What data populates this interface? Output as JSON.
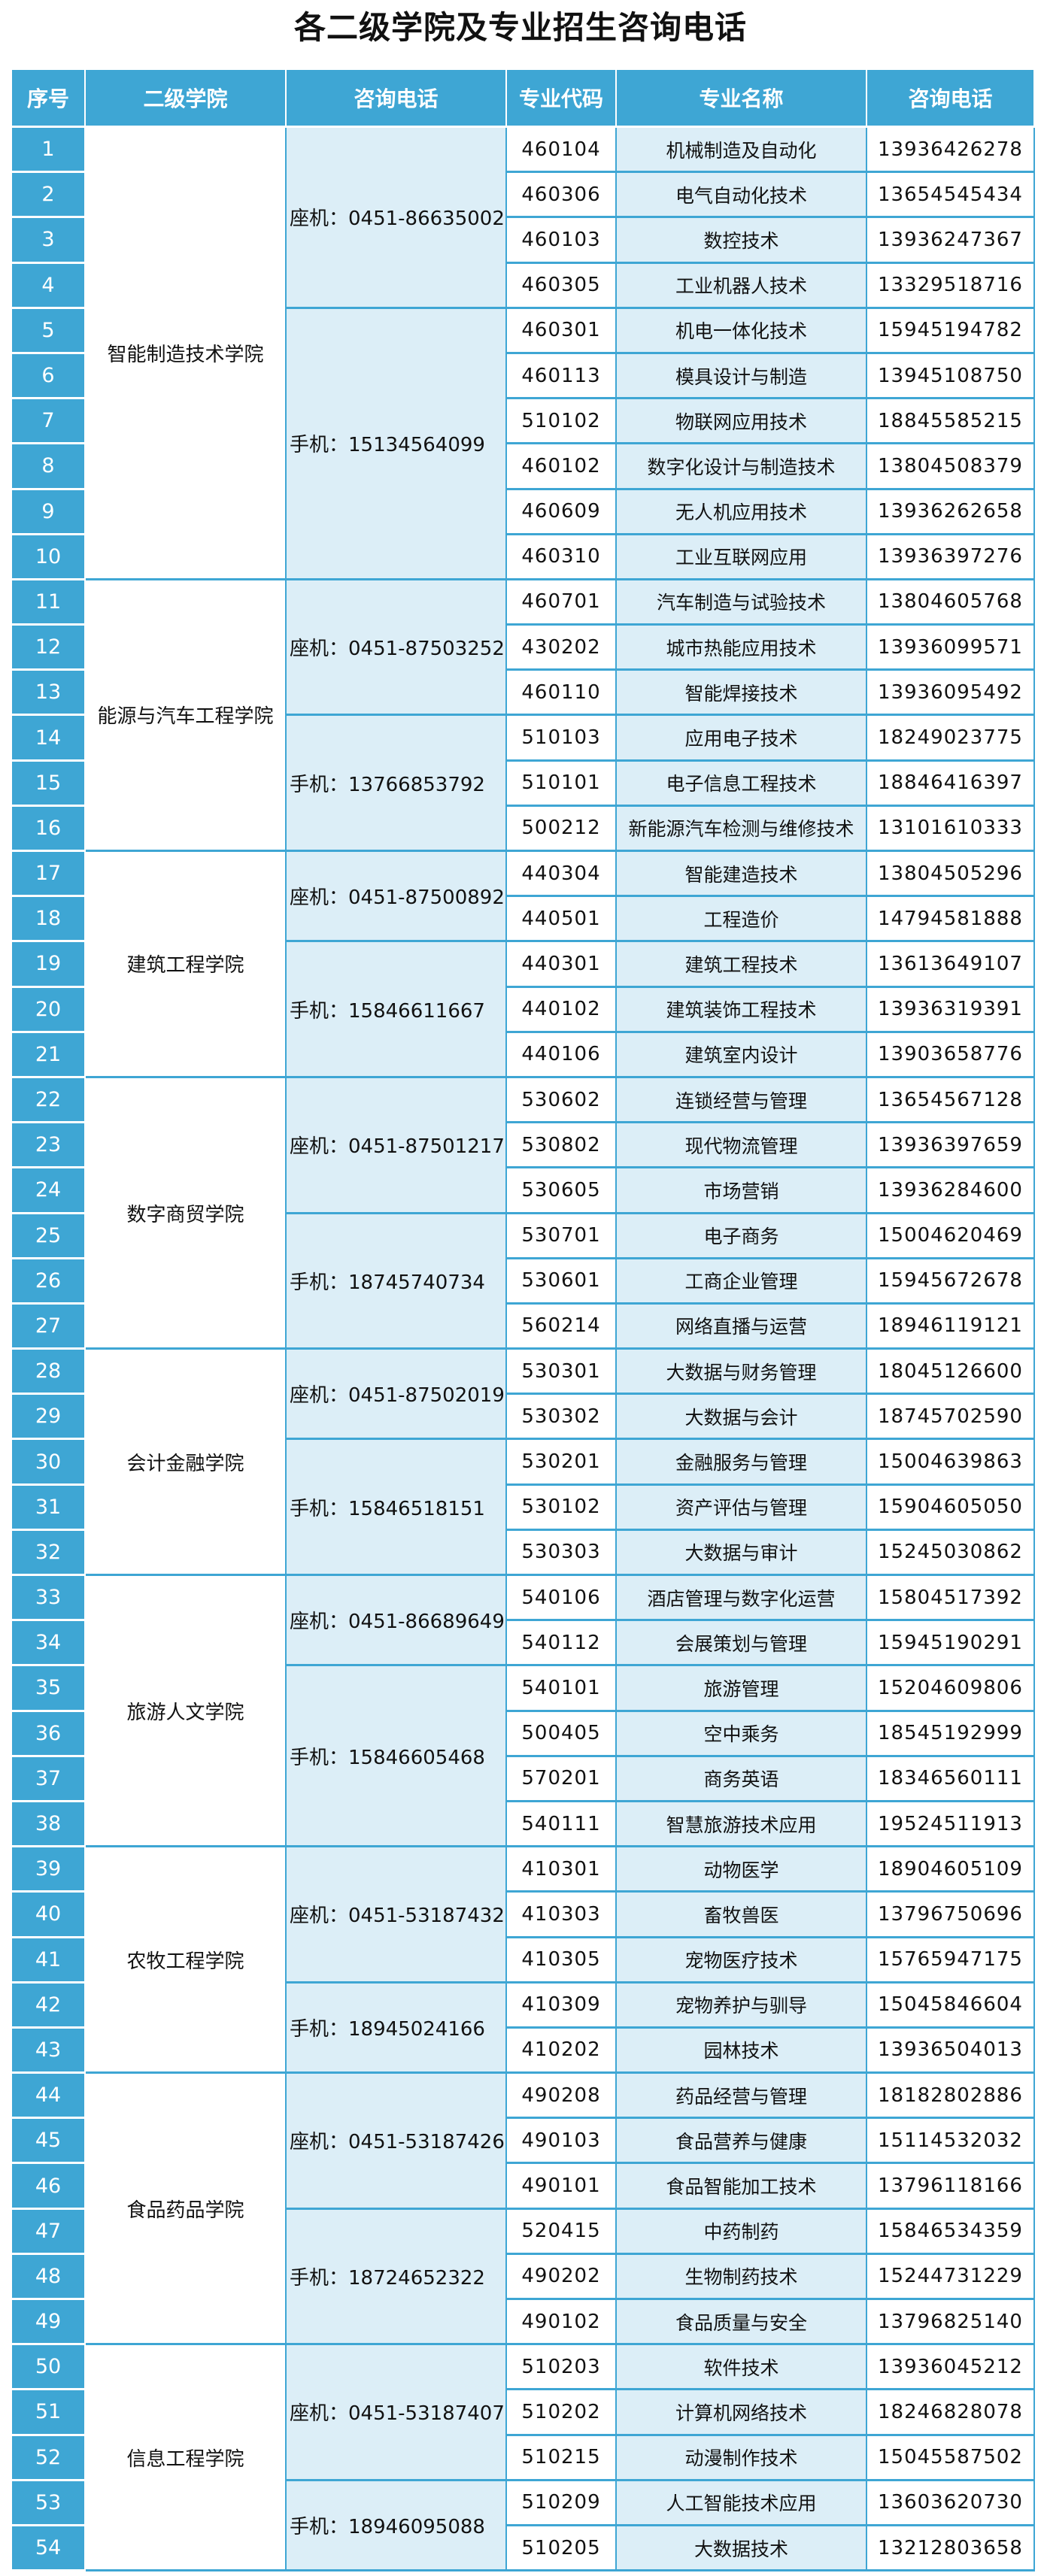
{
  "title": "各二级学院及专业招生咨询电话",
  "colors": {
    "header_bg": "#3ea6d4",
    "alt_cell_bg": "#dceef7",
    "border": "#3ea6d4"
  },
  "headers": [
    "序号",
    "二级学院",
    "咨询电话",
    "专业代码",
    "专业名称",
    "咨询电话"
  ],
  "colleges": [
    {
      "name": "智能制造技术学院",
      "phones": [
        {
          "text": "座机：0451-86635002",
          "majors": [
            {
              "seq": "1",
              "code": "460104",
              "name": "机械制造及自动化",
              "phone": "13936426278"
            },
            {
              "seq": "2",
              "code": "460306",
              "name": "电气自动化技术",
              "phone": "13654545434"
            },
            {
              "seq": "3",
              "code": "460103",
              "name": "数控技术",
              "phone": "13936247367"
            },
            {
              "seq": "4",
              "code": "460305",
              "name": "工业机器人技术",
              "phone": "13329518716"
            }
          ]
        },
        {
          "text": "手机：15134564099",
          "majors": [
            {
              "seq": "5",
              "code": "460301",
              "name": "机电一体化技术",
              "phone": "15945194782"
            },
            {
              "seq": "6",
              "code": "460113",
              "name": "模具设计与制造",
              "phone": "13945108750"
            },
            {
              "seq": "7",
              "code": "510102",
              "name": "物联网应用技术",
              "phone": "18845585215"
            },
            {
              "seq": "8",
              "code": "460102",
              "name": "数字化设计与制造技术",
              "phone": "13804508379"
            },
            {
              "seq": "9",
              "code": "460609",
              "name": "无人机应用技术",
              "phone": "13936262658"
            },
            {
              "seq": "10",
              "code": "460310",
              "name": "工业互联网应用",
              "phone": "13936397276"
            }
          ]
        }
      ]
    },
    {
      "name": "能源与汽车工程学院",
      "phones": [
        {
          "text": "座机：0451-87503252",
          "majors": [
            {
              "seq": "11",
              "code": "460701",
              "name": "汽车制造与试验技术",
              "phone": "13804605768"
            },
            {
              "seq": "12",
              "code": "430202",
              "name": "城市热能应用技术",
              "phone": "13936099571"
            },
            {
              "seq": "13",
              "code": "460110",
              "name": "智能焊接技术",
              "phone": "13936095492"
            }
          ]
        },
        {
          "text": "手机：13766853792",
          "majors": [
            {
              "seq": "14",
              "code": "510103",
              "name": "应用电子技术",
              "phone": "18249023775"
            },
            {
              "seq": "15",
              "code": "510101",
              "name": "电子信息工程技术",
              "phone": "18846416397"
            },
            {
              "seq": "16",
              "code": "500212",
              "name": "新能源汽车检测与维修技术",
              "phone": "13101610333"
            }
          ]
        }
      ]
    },
    {
      "name": "建筑工程学院",
      "phones": [
        {
          "text": "座机：0451-87500892",
          "majors": [
            {
              "seq": "17",
              "code": "440304",
              "name": "智能建造技术",
              "phone": "13804505296"
            },
            {
              "seq": "18",
              "code": "440501",
              "name": "工程造价",
              "phone": "14794581888"
            }
          ]
        },
        {
          "text": "手机：15846611667",
          "majors": [
            {
              "seq": "19",
              "code": "440301",
              "name": "建筑工程技术",
              "phone": "13613649107"
            },
            {
              "seq": "20",
              "code": "440102",
              "name": "建筑装饰工程技术",
              "phone": "13936319391"
            },
            {
              "seq": "21",
              "code": "440106",
              "name": "建筑室内设计",
              "phone": "13903658776"
            }
          ]
        }
      ]
    },
    {
      "name": "数字商贸学院",
      "phones": [
        {
          "text": "座机：0451-87501217",
          "majors": [
            {
              "seq": "22",
              "code": "530602",
              "name": "连锁经营与管理",
              "phone": "13654567128"
            },
            {
              "seq": "23",
              "code": "530802",
              "name": "现代物流管理",
              "phone": "13936397659"
            },
            {
              "seq": "24",
              "code": "530605",
              "name": "市场营销",
              "phone": "13936284600"
            }
          ]
        },
        {
          "text": "手机：18745740734",
          "majors": [
            {
              "seq": "25",
              "code": "530701",
              "name": "电子商务",
              "phone": "15004620469"
            },
            {
              "seq": "26",
              "code": "530601",
              "name": "工商企业管理",
              "phone": "15945672678"
            },
            {
              "seq": "27",
              "code": "560214",
              "name": "网络直播与运营",
              "phone": "18946119121"
            }
          ]
        }
      ]
    },
    {
      "name": "会计金融学院",
      "phones": [
        {
          "text": "座机：0451-87502019",
          "majors": [
            {
              "seq": "28",
              "code": "530301",
              "name": "大数据与财务管理",
              "phone": "18045126600"
            },
            {
              "seq": "29",
              "code": "530302",
              "name": "大数据与会计",
              "phone": "18745702590"
            }
          ]
        },
        {
          "text": "手机：15846518151",
          "majors": [
            {
              "seq": "30",
              "code": "530201",
              "name": "金融服务与管理",
              "phone": "15004639863"
            },
            {
              "seq": "31",
              "code": "530102",
              "name": "资产评估与管理",
              "phone": "15904605050"
            },
            {
              "seq": "32",
              "code": "530303",
              "name": "大数据与审计",
              "phone": "15245030862"
            }
          ]
        }
      ]
    },
    {
      "name": "旅游人文学院",
      "phones": [
        {
          "text": "座机：0451-86689649",
          "majors": [
            {
              "seq": "33",
              "code": "540106",
              "name": "酒店管理与数字化运营",
              "phone": "15804517392"
            },
            {
              "seq": "34",
              "code": "540112",
              "name": "会展策划与管理",
              "phone": "15945190291"
            }
          ]
        },
        {
          "text": "手机：15846605468",
          "majors": [
            {
              "seq": "35",
              "code": "540101",
              "name": "旅游管理",
              "phone": "15204609806"
            },
            {
              "seq": "36",
              "code": "500405",
              "name": "空中乘务",
              "phone": "18545192999"
            },
            {
              "seq": "37",
              "code": "570201",
              "name": "商务英语",
              "phone": "18346560111"
            },
            {
              "seq": "38",
              "code": "540111",
              "name": "智慧旅游技术应用",
              "phone": "19524511913"
            }
          ]
        }
      ]
    },
    {
      "name": "农牧工程学院",
      "phones": [
        {
          "text": "座机：0451-53187432",
          "majors": [
            {
              "seq": "39",
              "code": "410301",
              "name": "动物医学",
              "phone": "18904605109"
            },
            {
              "seq": "40",
              "code": "410303",
              "name": "畜牧兽医",
              "phone": "13796750696"
            },
            {
              "seq": "41",
              "code": "410305",
              "name": "宠物医疗技术",
              "phone": "15765947175"
            }
          ]
        },
        {
          "text": "手机：18945024166",
          "majors": [
            {
              "seq": "42",
              "code": "410309",
              "name": "宠物养护与驯导",
              "phone": "15045846604"
            },
            {
              "seq": "43",
              "code": "410202",
              "name": "园林技术",
              "phone": "13936504013"
            }
          ]
        }
      ]
    },
    {
      "name": "食品药品学院",
      "phones": [
        {
          "text": "座机：0451-53187426",
          "majors": [
            {
              "seq": "44",
              "code": "490208",
              "name": "药品经营与管理",
              "phone": "18182802886"
            },
            {
              "seq": "45",
              "code": "490103",
              "name": "食品营养与健康",
              "phone": "15114532032"
            },
            {
              "seq": "46",
              "code": "490101",
              "name": "食品智能加工技术",
              "phone": "13796118166"
            }
          ]
        },
        {
          "text": "手机：18724652322",
          "majors": [
            {
              "seq": "47",
              "code": "520415",
              "name": "中药制药",
              "phone": "15846534359"
            },
            {
              "seq": "48",
              "code": "490202",
              "name": "生物制药技术",
              "phone": "15244731229"
            },
            {
              "seq": "49",
              "code": "490102",
              "name": "食品质量与安全",
              "phone": "13796825140"
            }
          ]
        }
      ]
    },
    {
      "name": "信息工程学院",
      "phones": [
        {
          "text": "座机：0451-53187407",
          "majors": [
            {
              "seq": "50",
              "code": "510203",
              "name": "软件技术",
              "phone": "13936045212"
            },
            {
              "seq": "51",
              "code": "510202",
              "name": "计算机网络技术",
              "phone": "18246828078"
            },
            {
              "seq": "52",
              "code": "510215",
              "name": "动漫制作技术",
              "phone": "15045587502"
            }
          ]
        },
        {
          "text": "手机：18946095088",
          "majors": [
            {
              "seq": "53",
              "code": "510209",
              "name": "人工智能技术应用",
              "phone": "13603620730"
            },
            {
              "seq": "54",
              "code": "510205",
              "name": "大数据技术",
              "phone": "13212803658"
            }
          ]
        }
      ]
    }
  ]
}
